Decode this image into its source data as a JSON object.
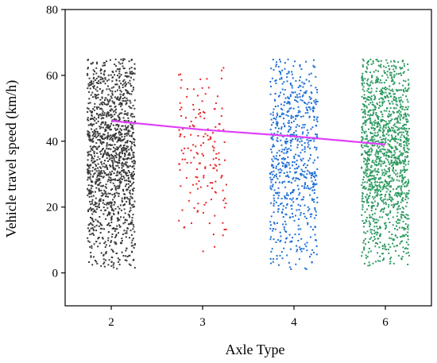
{
  "chart_data": {
    "type": "scatter",
    "title": "",
    "xlabel": "Axle Type",
    "ylabel": "Vehicle travel speed (km/h)",
    "categories": [
      "2",
      "3",
      "4",
      "6"
    ],
    "ylim": [
      -10,
      80
    ],
    "yticks": [
      0,
      20,
      40,
      60,
      80
    ],
    "grid": false,
    "series": [
      {
        "category": "2",
        "color": "#3a3a3a",
        "point_count": 1400,
        "range": [
          1,
          65
        ]
      },
      {
        "category": "3",
        "color": "#e8262a",
        "point_count": 160,
        "range": [
          6,
          63
        ]
      },
      {
        "category": "4",
        "color": "#1f6fd6",
        "point_count": 700,
        "range": [
          1,
          65
        ]
      },
      {
        "category": "6",
        "color": "#2e9b62",
        "point_count": 1400,
        "range": [
          2,
          65
        ]
      }
    ],
    "trend_line": {
      "color": "#e040fb",
      "points": [
        {
          "x": "2",
          "y": 46.2
        },
        {
          "x": "3",
          "y": 43.5
        },
        {
          "x": "4",
          "y": 41.5
        },
        {
          "x": "6",
          "y": 39.0
        }
      ]
    }
  }
}
